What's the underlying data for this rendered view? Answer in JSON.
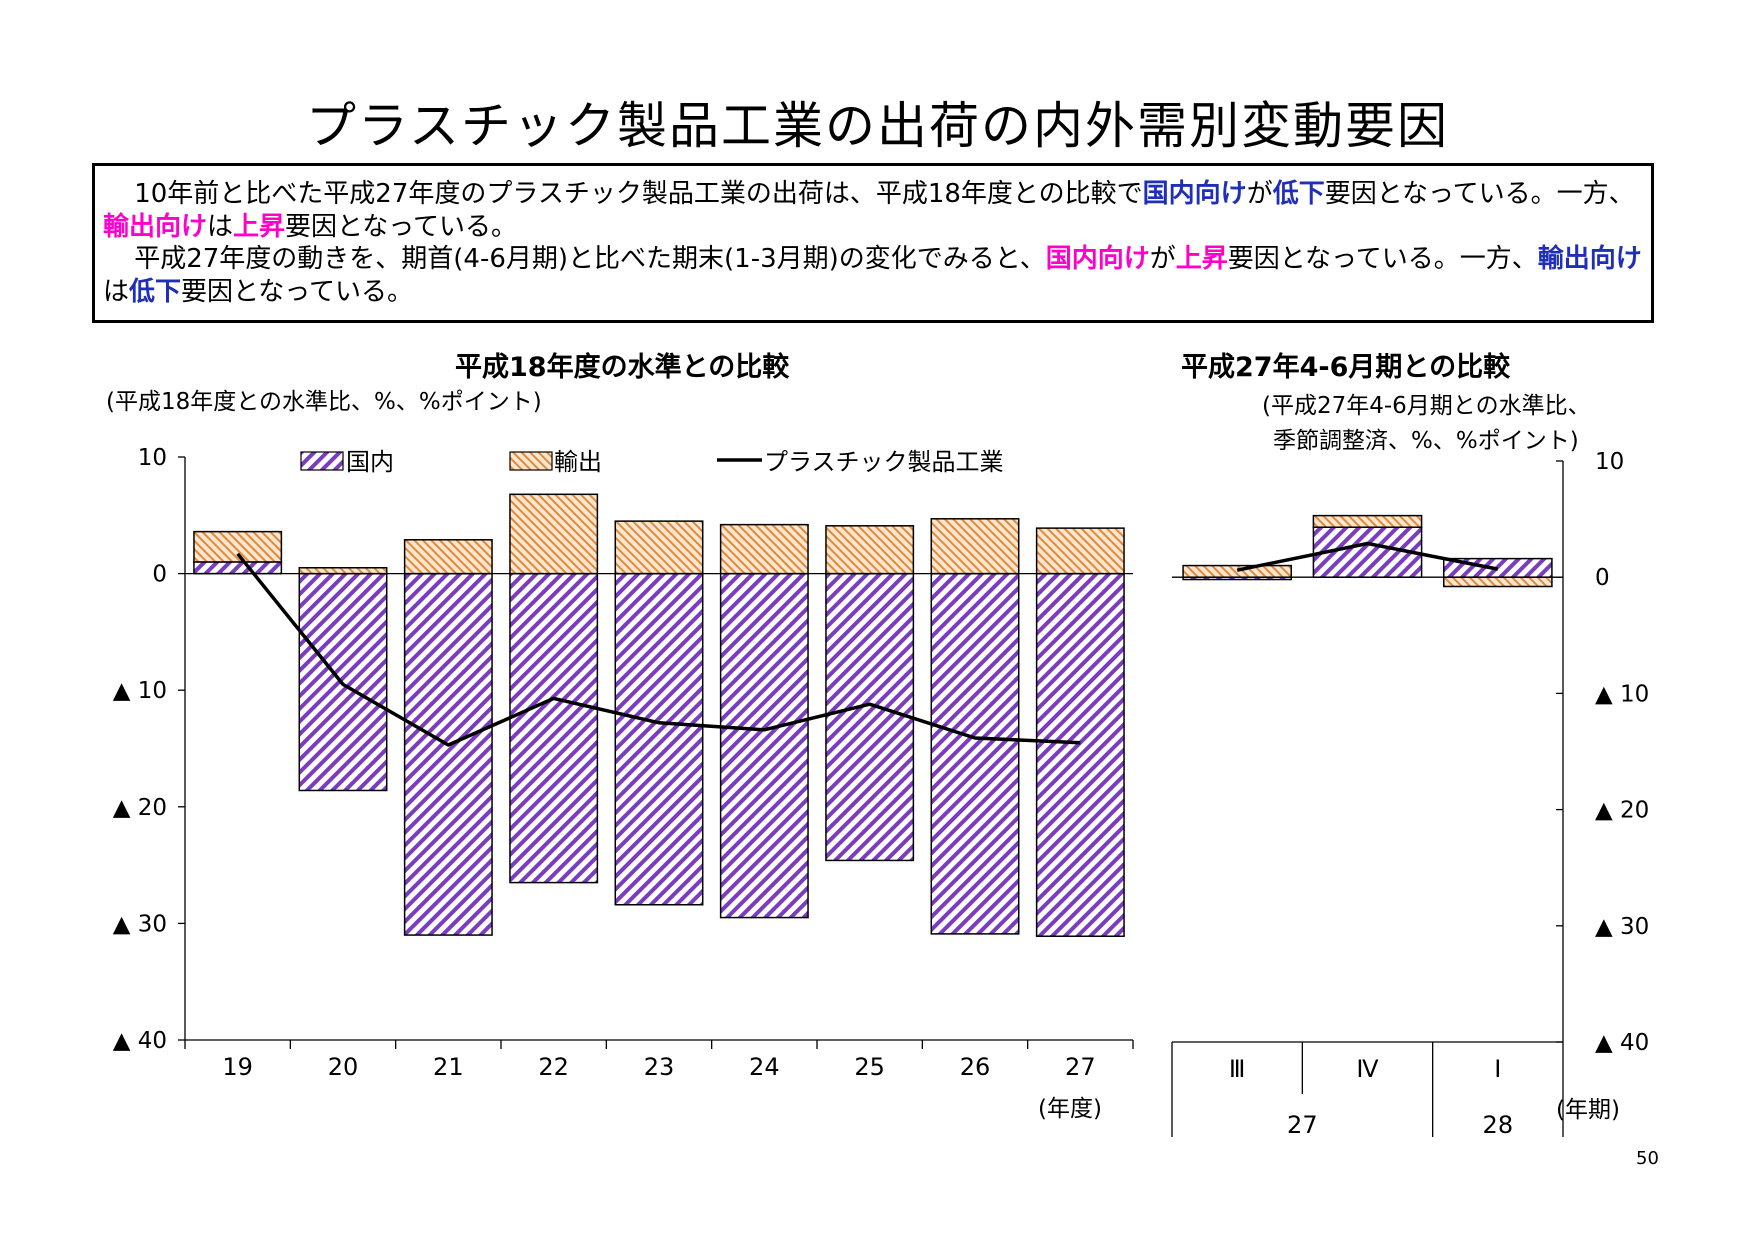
{
  "page": {
    "title": "プラスチック製品工業の出荷の内外需別変動要因",
    "page_number": "50"
  },
  "summary": {
    "p1": [
      {
        "t": "10年前と比べた平成27年度のプラスチック製品工業の出荷は、平成18年度との比較で",
        "c": ""
      },
      {
        "t": "国内向け",
        "c": "blue"
      },
      {
        "t": "が",
        "c": ""
      },
      {
        "t": "低下",
        "c": "blue"
      },
      {
        "t": "要因となっている。一方、",
        "c": ""
      },
      {
        "t": "輸出向け",
        "c": "pink"
      },
      {
        "t": "は",
        "c": ""
      },
      {
        "t": "上昇",
        "c": "pink"
      },
      {
        "t": "要因となっている。",
        "c": ""
      }
    ],
    "p2": [
      {
        "t": "平成27年度の動きを、期首(4-6月期)と比べた期末(1-3月期)の変化でみると、",
        "c": ""
      },
      {
        "t": "国内向け",
        "c": "pink"
      },
      {
        "t": "が",
        "c": ""
      },
      {
        "t": "上昇",
        "c": "pink"
      },
      {
        "t": "要因となっている。一方、",
        "c": ""
      },
      {
        "t": "輸出向け",
        "c": "blue"
      },
      {
        "t": "は",
        "c": ""
      },
      {
        "t": "低下",
        "c": "blue"
      },
      {
        "t": "要因となっている。",
        "c": ""
      }
    ]
  },
  "legend": {
    "domestic": "国内",
    "export": "輸出",
    "total": "プラスチック製品工業"
  },
  "colors": {
    "domestic_stripe": "#7a3cc0",
    "export_stripe": "#e08a3a",
    "export_fill": "#fde6cf",
    "line": "#000000"
  },
  "chart_data": [
    {
      "type": "bar",
      "title": "平成18年度の水準との比較",
      "unit_note": "(平成18年度との水準比、%、%ポイント)",
      "x_unit": "(年度)",
      "ylim": [
        -40,
        10
      ],
      "y_ticks": [
        {
          "v": 10,
          "label": "10"
        },
        {
          "v": 0,
          "label": "0"
        },
        {
          "v": -10,
          "label": "▲ 10"
        },
        {
          "v": -20,
          "label": "▲ 20"
        },
        {
          "v": -30,
          "label": "▲ 30"
        },
        {
          "v": -40,
          "label": "▲ 40"
        }
      ],
      "categories": [
        "19",
        "20",
        "21",
        "22",
        "23",
        "24",
        "25",
        "26",
        "27"
      ],
      "series": [
        {
          "name": "国内",
          "kind": "bar-domestic",
          "values": [
            1.0,
            -18.6,
            -31.0,
            -26.5,
            -28.4,
            -29.5,
            -24.6,
            -30.9,
            -31.1
          ]
        },
        {
          "name": "輸出",
          "kind": "bar-export",
          "values": [
            2.6,
            0.5,
            2.9,
            6.8,
            4.5,
            4.2,
            4.1,
            4.7,
            3.9
          ]
        },
        {
          "name": "プラスチック製品工業",
          "kind": "line",
          "values": [
            1.7,
            -9.5,
            -14.7,
            -10.7,
            -12.8,
            -13.4,
            -11.2,
            -14.1,
            -14.5
          ]
        }
      ]
    },
    {
      "type": "bar",
      "title": "平成27年4-6月期との比較",
      "unit_note": [
        "(平成27年4-6月期との水準比、",
        "季節調整済、%、%ポイント)"
      ],
      "x_unit": "(年期)",
      "ylim": [
        -40,
        10
      ],
      "y_ticks": [
        {
          "v": 10,
          "label": "10"
        },
        {
          "v": 0,
          "label": "0"
        },
        {
          "v": -10,
          "label": "▲ 10"
        },
        {
          "v": -20,
          "label": "▲ 20"
        },
        {
          "v": -30,
          "label": "▲ 30"
        },
        {
          "v": -40,
          "label": "▲ 40"
        }
      ],
      "categories": [
        "Ⅲ",
        "Ⅳ",
        "Ⅰ"
      ],
      "year_groups": [
        {
          "label": "27",
          "span": [
            0,
            1
          ]
        },
        {
          "label": "28",
          "span": [
            2,
            2
          ]
        }
      ],
      "series": [
        {
          "name": "国内",
          "kind": "bar-domestic",
          "values": [
            -0.2,
            4.3,
            1.6
          ]
        },
        {
          "name": "輸出",
          "kind": "bar-export",
          "values": [
            1.0,
            1.0,
            -0.8
          ]
        },
        {
          "name": "プラスチック製品工業",
          "kind": "line",
          "values": [
            0.6,
            2.9,
            0.7
          ]
        }
      ]
    }
  ]
}
